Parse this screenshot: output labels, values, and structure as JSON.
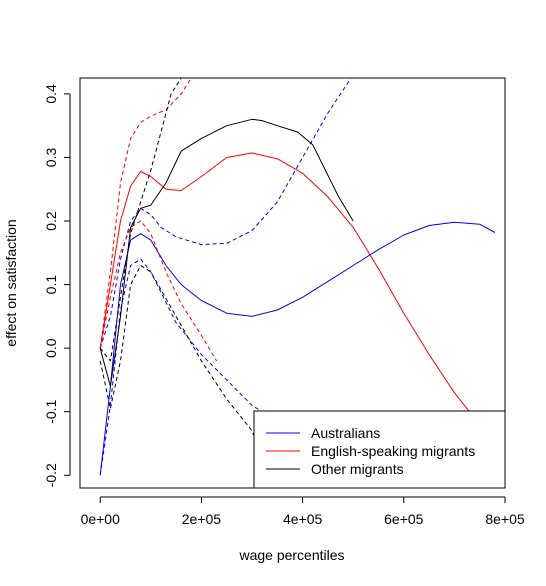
{
  "chart_data": {
    "type": "line",
    "title": "",
    "xlabel": "wage percentiles",
    "ylabel": "effect on satisfaction",
    "xlim": [
      -40000,
      800000
    ],
    "ylim": [
      -0.22,
      0.425
    ],
    "x_ticks": [
      0,
      200000,
      400000,
      600000,
      800000
    ],
    "x_tick_labels": [
      "0e+00",
      "2e+05",
      "4e+05",
      "6e+05",
      "8e+05"
    ],
    "y_ticks": [
      -0.2,
      -0.1,
      0.0,
      0.1,
      0.2,
      0.3,
      0.4
    ],
    "y_tick_labels": [
      "-0.2",
      "-0.1",
      "0.0",
      "0.1",
      "0.2",
      "0.3",
      "0.4"
    ],
    "grid": false,
    "legend_position": "bottom-right",
    "colors": {
      "Australians": "#0000ff",
      "English-speaking migrants": "#ff0000",
      "Other migrants": "#000000"
    },
    "legend": [
      {
        "name": "Australians",
        "color": "#0000ff"
      },
      {
        "name": "English-speaking migrants",
        "color": "#ff0000"
      },
      {
        "name": "Other migrants",
        "color": "#000000"
      }
    ],
    "series": [
      {
        "name": "Australians",
        "style": "solid",
        "color": "#0000ff",
        "x": [
          0,
          20000,
          40000,
          60000,
          80000,
          100000,
          130000,
          160000,
          200000,
          250000,
          300000,
          350000,
          400000,
          450000,
          500000,
          550000,
          600000,
          650000,
          700000,
          750000,
          780000
        ],
        "y": [
          -0.2,
          -0.06,
          0.1,
          0.17,
          0.18,
          0.17,
          0.13,
          0.1,
          0.075,
          0.055,
          0.05,
          0.06,
          0.08,
          0.105,
          0.13,
          0.155,
          0.178,
          0.193,
          0.198,
          0.195,
          0.182
        ]
      },
      {
        "name": "Australians",
        "style": "dashed",
        "color": "#0000ff",
        "x": [
          0,
          20000,
          40000,
          60000,
          80000,
          100000,
          120000,
          150000,
          200000,
          250000,
          300000,
          350000,
          400000,
          450000,
          500000
        ],
        "y": [
          0,
          0.05,
          0.14,
          0.2,
          0.22,
          0.21,
          0.19,
          0.175,
          0.163,
          0.165,
          0.185,
          0.23,
          0.3,
          0.37,
          0.43
        ]
      },
      {
        "name": "Australians",
        "style": "dashed",
        "color": "#0000ff",
        "x": [
          0,
          20000,
          40000,
          60000,
          80000,
          100000,
          150000,
          200000,
          250000,
          300000,
          320000
        ],
        "y": [
          -0.2,
          -0.09,
          0.06,
          0.13,
          0.14,
          0.12,
          0.04,
          -0.01,
          -0.05,
          -0.09,
          -0.1
        ]
      },
      {
        "name": "English-speaking migrants",
        "style": "solid",
        "color": "#ff0000",
        "x": [
          0,
          20000,
          40000,
          60000,
          80000,
          100000,
          130000,
          160000,
          200000,
          250000,
          300000,
          350000,
          400000,
          450000,
          500000,
          550000,
          600000,
          650000,
          700000,
          740000
        ],
        "y": [
          0,
          0.1,
          0.2,
          0.255,
          0.278,
          0.27,
          0.25,
          0.248,
          0.27,
          0.3,
          0.307,
          0.298,
          0.275,
          0.238,
          0.19,
          0.125,
          0.055,
          -0.01,
          -0.07,
          -0.11
        ]
      },
      {
        "name": "English-speaking migrants",
        "style": "dashed",
        "color": "#ff0000",
        "x": [
          0,
          20000,
          40000,
          60000,
          80000,
          100000,
          130000,
          160000,
          180000
        ],
        "y": [
          0,
          0.12,
          0.26,
          0.33,
          0.355,
          0.365,
          0.375,
          0.4,
          0.425
        ]
      },
      {
        "name": "English-speaking migrants",
        "style": "dashed",
        "color": "#ff0000",
        "x": [
          0,
          20000,
          40000,
          60000,
          80000,
          100000,
          130000,
          160000,
          200000,
          230000
        ],
        "y": [
          0,
          0.08,
          0.15,
          0.19,
          0.2,
          0.18,
          0.12,
          0.07,
          0.02,
          -0.02
        ]
      },
      {
        "name": "Other migrants",
        "style": "solid",
        "color": "#000000",
        "x": [
          0,
          20000,
          40000,
          60000,
          80000,
          100000,
          130000,
          160000,
          200000,
          250000,
          300000,
          320000,
          350000,
          390000,
          420000,
          470000,
          500000
        ],
        "y": [
          0,
          -0.06,
          0.05,
          0.19,
          0.22,
          0.225,
          0.26,
          0.31,
          0.33,
          0.35,
          0.36,
          0.358,
          0.35,
          0.34,
          0.32,
          0.24,
          0.2
        ]
      },
      {
        "name": "Other migrants",
        "style": "dashed",
        "color": "#000000",
        "x": [
          0,
          20000,
          40000,
          60000,
          80000,
          100000,
          120000,
          140000,
          160000
        ],
        "y": [
          0,
          -0.02,
          0.08,
          0.18,
          0.23,
          0.28,
          0.34,
          0.4,
          0.425
        ]
      },
      {
        "name": "Other migrants",
        "style": "dashed",
        "color": "#000000",
        "x": [
          0,
          20000,
          40000,
          60000,
          80000,
          100000,
          150000,
          200000,
          250000,
          300000,
          310000
        ],
        "y": [
          -0.02,
          -0.095,
          -0.02,
          0.1,
          0.13,
          0.12,
          0.05,
          -0.02,
          -0.08,
          -0.13,
          -0.15
        ]
      }
    ]
  }
}
